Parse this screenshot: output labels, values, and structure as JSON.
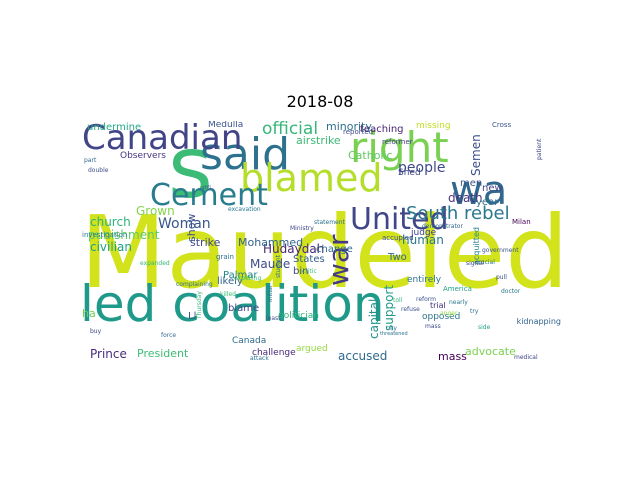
{
  "title": "2018-08",
  "words": [
    {
      "text": "Maudeled",
      "color": "#d2e21b",
      "rotated": false
    },
    {
      "text": "led coalition",
      "color": "#1f9a8a",
      "rotated": false
    },
    {
      "text": "s",
      "color": "#3bbb75",
      "rotated": false
    },
    {
      "text": "said",
      "color": "#2c728e",
      "rotated": false
    },
    {
      "text": "right",
      "color": "#7ad151",
      "rotated": false
    },
    {
      "text": "blamed",
      "color": "#b5de2b",
      "rotated": false
    },
    {
      "text": "wa",
      "color": "#31688e",
      "rotated": false
    },
    {
      "text": "Canadian",
      "color": "#414487",
      "rotated": false
    },
    {
      "text": "Cement",
      "color": "#287c8e",
      "rotated": false
    },
    {
      "text": "United",
      "color": "#404688",
      "rotated": false
    },
    {
      "text": "war",
      "color": "#443983",
      "rotated": true
    },
    {
      "text": "South rebel",
      "color": "#2a778e",
      "rotated": false
    },
    {
      "text": "official",
      "color": "#35b779",
      "rotated": false
    },
    {
      "text": "people",
      "color": "#3e4a89",
      "rotated": false
    },
    {
      "text": "Woman",
      "color": "#39568c",
      "rotated": false
    },
    {
      "text": "punishment",
      "color": "#5ec962",
      "rotated": false
    },
    {
      "text": "Grown",
      "color": "#84d44b",
      "rotated": false
    },
    {
      "text": "civilian",
      "color": "#1fa187",
      "rotated": false
    },
    {
      "text": "church",
      "color": "#2db27d",
      "rotated": false
    },
    {
      "text": "Hudaydah",
      "color": "#482878",
      "rotated": false
    },
    {
      "text": "Maude",
      "color": "#3e4c8a",
      "rotated": false
    },
    {
      "text": "Palmar",
      "color": "#25858e",
      "rotated": false
    },
    {
      "text": "strike",
      "color": "#3f4889",
      "rotated": false
    },
    {
      "text": "Mohammed",
      "color": "#33638d",
      "rotated": false
    },
    {
      "text": "States",
      "color": "#355f8d",
      "rotated": false
    },
    {
      "text": "Two",
      "color": "#31688e",
      "rotated": false
    },
    {
      "text": "capital",
      "color": "#21918c",
      "rotated": true
    },
    {
      "text": "support",
      "color": "#1e9b8a",
      "rotated": true
    },
    {
      "text": "human",
      "color": "#2a788e",
      "rotated": false
    },
    {
      "text": "death",
      "color": "#46337e",
      "rotated": false
    },
    {
      "text": "men",
      "color": "#3b528b",
      "rotated": false
    },
    {
      "text": "new",
      "color": "#414487",
      "rotated": false
    },
    {
      "text": "year",
      "color": "#2e6e8e",
      "rotated": false
    },
    {
      "text": "Semen",
      "color": "#3c4f8a",
      "rotated": true
    },
    {
      "text": "Prince",
      "color": "#472d7b",
      "rotated": false
    },
    {
      "text": "President",
      "color": "#3bbb75",
      "rotated": false
    },
    {
      "text": "accused",
      "color": "#30698e",
      "rotated": false
    },
    {
      "text": "advocate",
      "color": "#7ad151",
      "rotated": false
    },
    {
      "text": "mass",
      "color": "#440154",
      "rotated": false
    },
    {
      "text": "minority",
      "color": "#2c728e",
      "rotated": false
    },
    {
      "text": "teaching",
      "color": "#482475",
      "rotated": false
    },
    {
      "text": "airstrike",
      "color": "#3bbb75",
      "rotated": false
    },
    {
      "text": "Catholic",
      "color": "#5ec962",
      "rotated": false
    },
    {
      "text": "undermine",
      "color": "#22a884",
      "rotated": false
    },
    {
      "text": "Observers",
      "color": "#463480",
      "rotated": false
    },
    {
      "text": "Medulla",
      "color": "#3a548c",
      "rotated": false
    },
    {
      "text": "missing",
      "color": "#c2df23",
      "rotated": false
    },
    {
      "text": "bin",
      "color": "#3e4a89",
      "rotated": false
    },
    {
      "text": "Shed",
      "color": "#3f4788",
      "rotated": false
    },
    {
      "text": "change",
      "color": "#2f6c8e",
      "rotated": false
    },
    {
      "text": "likely",
      "color": "#34618d",
      "rotated": false
    },
    {
      "text": "blame",
      "color": "#3e4989",
      "rotated": false
    },
    {
      "text": "Ll",
      "color": "#3b528b",
      "rotated": false
    },
    {
      "text": "politician",
      "color": "#31b57b",
      "rotated": false
    },
    {
      "text": "challenge",
      "color": "#482878",
      "rotated": false
    },
    {
      "text": "Canada",
      "color": "#2f6b8e",
      "rotated": false
    },
    {
      "text": "argued",
      "color": "#95d840",
      "rotated": false
    },
    {
      "text": "opposed",
      "color": "#2a768e",
      "rotated": false
    },
    {
      "text": "judge",
      "color": "#404387",
      "rotated": false
    },
    {
      "text": "acquitted",
      "color": "#23888e",
      "rotated": true
    },
    {
      "text": "kidnapping",
      "color": "#33638d",
      "rotated": false
    },
    {
      "text": "trial",
      "color": "#46307e",
      "rotated": false
    },
    {
      "text": "entirely",
      "color": "#2c738e",
      "rotated": false
    },
    {
      "text": "show",
      "color": "#3b528b",
      "rotated": true
    },
    {
      "text": "ha",
      "color": "#6ece58",
      "rotated": false
    },
    {
      "text": "investigation",
      "color": "#277f8e",
      "rotated": false
    },
    {
      "text": "reported",
      "color": "#3e4c8a",
      "rotated": false
    },
    {
      "text": "Cross",
      "color": "#39558c",
      "rotated": false
    },
    {
      "text": "reformer",
      "color": "#433e85",
      "rotated": false
    },
    {
      "text": "Thursday",
      "color": "#35b779",
      "rotated": true
    },
    {
      "text": "grain",
      "color": "#2c738e",
      "rotated": false
    },
    {
      "text": "accupied",
      "color": "#3c4f8a",
      "rotated": false
    },
    {
      "text": "demonstrator",
      "color": "#31668e",
      "rotated": false
    },
    {
      "text": "statement",
      "color": "#2e6f8e",
      "rotated": false
    },
    {
      "text": "critic",
      "color": "#3dbc74",
      "rotated": false
    },
    {
      "text": "Milan",
      "color": "#440154",
      "rotated": false
    },
    {
      "text": "government",
      "color": "#3a548c",
      "rotated": false
    },
    {
      "text": "doctor",
      "color": "#297b8e",
      "rotated": false
    },
    {
      "text": "crucial",
      "color": "#2a778e",
      "rotated": false
    },
    {
      "text": "pull",
      "color": "#3d4d8a",
      "rotated": false
    },
    {
      "text": "attack",
      "color": "#2c718e",
      "rotated": false
    },
    {
      "text": "America",
      "color": "#20a486",
      "rotated": false
    },
    {
      "text": "Ministry",
      "color": "#3e4989",
      "rotated": false
    },
    {
      "text": "medical",
      "color": "#404688",
      "rotated": false
    },
    {
      "text": "refuse",
      "color": "#3a538b",
      "rotated": false
    },
    {
      "text": "complaining",
      "color": "#2e6f8e",
      "rotated": false
    },
    {
      "text": "force",
      "color": "#31688e",
      "rotated": false
    },
    {
      "text": "expelling",
      "color": "#3bbb75",
      "rotated": false
    },
    {
      "text": "excavation",
      "color": "#2a788e",
      "rotated": false
    },
    {
      "text": "still",
      "color": "#3f4889",
      "rotated": false
    },
    {
      "text": "threatened",
      "color": "#2c728e",
      "rotated": false
    },
    {
      "text": "nearly",
      "color": "#297a8e",
      "rotated": false
    },
    {
      "text": "signal",
      "color": "#3e4a89",
      "rotated": false
    },
    {
      "text": "double",
      "color": "#3e4c8a",
      "rotated": false
    },
    {
      "text": "part",
      "color": "#31688e",
      "rotated": false
    },
    {
      "text": "buy",
      "color": "#3e4a89",
      "rotated": false
    },
    {
      "text": "try",
      "color": "#2e6e8e",
      "rotated": false
    },
    {
      "text": "city",
      "color": "#2a768e",
      "rotated": false
    },
    {
      "text": "toll",
      "color": "#35b779",
      "rotated": false
    },
    {
      "text": "mass",
      "color": "#3e4c8a",
      "rotated": false
    },
    {
      "text": "side",
      "color": "#20a386",
      "rotated": false
    },
    {
      "text": "anger",
      "color": "#90d743",
      "rotated": false
    },
    {
      "text": "reform",
      "color": "#3b528b",
      "rotated": false
    },
    {
      "text": "initial",
      "color": "#2c728e",
      "rotated": true
    },
    {
      "text": "patient",
      "color": "#3e4a89",
      "rotated": true
    },
    {
      "text": "student",
      "color": "#2d708e",
      "rotated": true
    },
    {
      "text": "killed",
      "color": "#3bbb75",
      "rotated": false
    },
    {
      "text": "least",
      "color": "#3b528b",
      "rotated": false
    },
    {
      "text": "expanded",
      "color": "#35b779",
      "rotated": false
    }
  ]
}
